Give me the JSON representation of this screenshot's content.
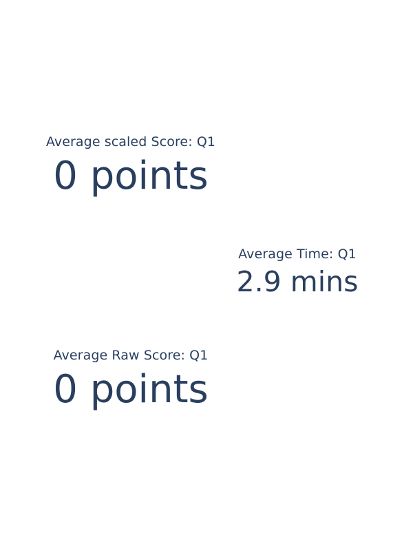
{
  "colors": {
    "text": "#2a3f5f",
    "background": "#ffffff"
  },
  "indicators": [
    {
      "title": "Average scaled Score: Q1",
      "value": "0 points"
    },
    {
      "title": "Average Time: Q1",
      "value": "2.9 mins"
    },
    {
      "title": "Average Raw Score: Q1",
      "value": "0 points"
    }
  ]
}
